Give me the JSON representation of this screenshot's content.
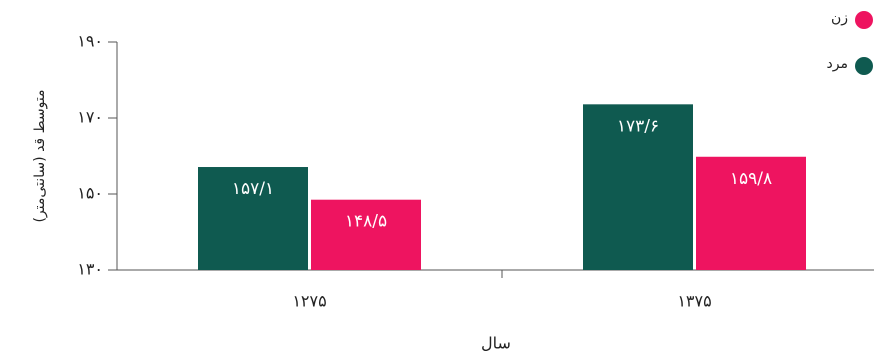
{
  "chart_data": {
    "type": "bar",
    "ylabel": "متوسط قد (سانتی‌متر)",
    "xlabel": "سال",
    "categories": [
      "۱۲۷۵",
      "۱۳۷۵"
    ],
    "series": [
      {
        "name": "مرد",
        "color": "#0f5a50",
        "values": [
          157.1,
          173.6
        ],
        "value_labels": [
          "۱۵۷/۱",
          "۱۷۳/۶"
        ]
      },
      {
        "name": "زن",
        "color": "#ee1460",
        "values": [
          148.5,
          159.8
        ],
        "value_labels": [
          "۱۴۸/۵",
          "۱۵۹/۸"
        ]
      }
    ],
    "ylim": [
      130,
      190
    ],
    "yticks": [
      {
        "value": 130,
        "label": "۱۳۰"
      },
      {
        "value": 150,
        "label": "۱۵۰"
      },
      {
        "value": 170,
        "label": "۱۷۰"
      },
      {
        "value": 190,
        "label": "۱۹۰"
      }
    ],
    "legend": "top-right"
  }
}
